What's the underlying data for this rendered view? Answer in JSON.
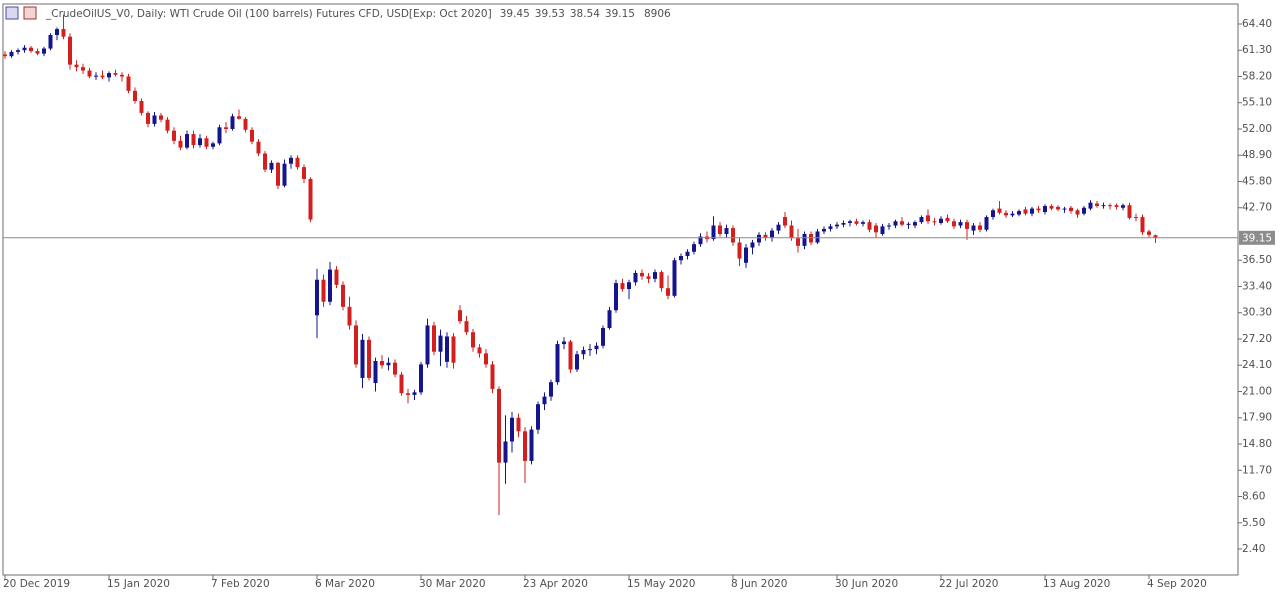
{
  "chart_data": {
    "type": "candlestick",
    "title": "_CrudeOilUS_V0, Daily:  WTI Crude Oil (100 barrels) Futures CFD, USD[Exp: Oct 2020]",
    "volume": 8906,
    "up_color": "#14148c",
    "down_color": "#d41f1f",
    "price_line_color": "#8c8c8c",
    "ylim": [
      -0.67,
      66.76
    ],
    "yticks": [
      {
        "value": 64.4,
        "label": "64.40"
      },
      {
        "value": 61.3,
        "label": "61.30"
      },
      {
        "value": 58.2,
        "label": "58.20"
      },
      {
        "value": 55.1,
        "label": "55.10"
      },
      {
        "value": 52,
        "label": "52.00"
      },
      {
        "value": 48.9,
        "label": "48.90"
      },
      {
        "value": 45.8,
        "label": "45.80"
      },
      {
        "value": 42.7,
        "label": "42.70"
      },
      {
        "value": 36.5,
        "label": "36.50"
      },
      {
        "value": 33.4,
        "label": "33.40"
      },
      {
        "value": 30.3,
        "label": "30.30"
      },
      {
        "value": 27.2,
        "label": "27.20"
      },
      {
        "value": 24.1,
        "label": "24.10"
      },
      {
        "value": 21,
        "label": "21.00"
      },
      {
        "value": 17.9,
        "label": "17.90"
      },
      {
        "value": 14.8,
        "label": "14.80"
      },
      {
        "value": 11.7,
        "label": "11.70"
      },
      {
        "value": 8.6,
        "label": "8.60"
      },
      {
        "value": 5.5,
        "label": "5.50"
      },
      {
        "value": 2.4,
        "label": "2.40"
      }
    ],
    "categories": [
      "20 Dec 2019",
      null,
      null,
      null,
      null,
      null,
      null,
      null,
      null,
      null,
      null,
      null,
      null,
      null,
      null,
      null,
      "15 Jan 2020",
      null,
      null,
      null,
      null,
      null,
      null,
      null,
      null,
      null,
      null,
      null,
      null,
      null,
      null,
      null,
      "7 Feb 2020",
      null,
      null,
      null,
      null,
      null,
      null,
      null,
      null,
      null,
      null,
      null,
      null,
      null,
      null,
      null,
      "6 Mar 2020",
      null,
      null,
      null,
      null,
      null,
      null,
      null,
      null,
      null,
      null,
      null,
      null,
      null,
      null,
      null,
      "30 Mar 2020",
      null,
      null,
      null,
      null,
      null,
      null,
      null,
      null,
      null,
      null,
      null,
      null,
      null,
      null,
      null,
      "23 Apr 2020",
      null,
      null,
      null,
      null,
      null,
      null,
      null,
      null,
      null,
      null,
      null,
      null,
      null,
      null,
      null,
      "15 May 2020",
      null,
      null,
      null,
      null,
      null,
      null,
      null,
      null,
      null,
      null,
      null,
      null,
      null,
      null,
      null,
      "8 Jun 2020",
      null,
      null,
      null,
      null,
      null,
      null,
      null,
      null,
      null,
      null,
      null,
      null,
      null,
      null,
      null,
      "30 Jun 2020",
      null,
      null,
      null,
      null,
      null,
      null,
      null,
      null,
      null,
      null,
      null,
      null,
      null,
      null,
      null,
      "22 Jul 2020",
      null,
      null,
      null,
      null,
      null,
      null,
      null,
      null,
      null,
      null,
      null,
      null,
      null,
      null,
      null,
      "13 Aug 2020",
      null,
      null,
      null,
      null,
      null,
      null,
      null,
      null,
      null,
      null,
      null,
      null,
      null,
      null,
      null,
      "4 Sep 2020",
      null
    ],
    "ohlc": [
      [
        60.8,
        61.2,
        60.3,
        60.6
      ],
      [
        60.6,
        61.3,
        60.4,
        61.1
      ],
      [
        61.1,
        61.5,
        60.8,
        61.3
      ],
      [
        61.3,
        61.9,
        61.0,
        61.6
      ],
      [
        61.6,
        61.8,
        61.0,
        61.2
      ],
      [
        61.2,
        61.5,
        60.7,
        60.9
      ],
      [
        60.9,
        61.7,
        60.6,
        61.5
      ],
      [
        61.5,
        63.3,
        61.3,
        63.1
      ],
      [
        63.1,
        64.0,
        62.5,
        63.8
      ],
      [
        63.8,
        65.5,
        62.6,
        62.9
      ],
      [
        62.9,
        63.3,
        59.0,
        59.6
      ],
      [
        59.6,
        60.1,
        58.8,
        59.3
      ],
      [
        59.3,
        59.7,
        58.5,
        58.9
      ],
      [
        58.9,
        59.2,
        58.0,
        58.2
      ],
      [
        58.2,
        58.7,
        57.8,
        58.3
      ],
      [
        58.3,
        58.9,
        57.9,
        58.1
      ],
      [
        58.1,
        58.8,
        57.6,
        58.6
      ],
      [
        58.6,
        59.0,
        58.2,
        58.4
      ],
      [
        58.4,
        58.7,
        57.6,
        58.2
      ],
      [
        58.2,
        58.5,
        56.2,
        56.5
      ],
      [
        56.5,
        56.9,
        55.0,
        55.3
      ],
      [
        55.3,
        55.6,
        53.6,
        53.9
      ],
      [
        53.9,
        54.1,
        52.2,
        52.6
      ],
      [
        52.6,
        54.0,
        52.3,
        53.6
      ],
      [
        53.6,
        53.9,
        52.8,
        53.1
      ],
      [
        53.1,
        53.4,
        51.5,
        51.8
      ],
      [
        51.8,
        52.2,
        50.2,
        50.6
      ],
      [
        50.6,
        51.2,
        49.5,
        49.8
      ],
      [
        49.8,
        51.8,
        49.6,
        51.4
      ],
      [
        51.4,
        51.8,
        49.7,
        50.1
      ],
      [
        50.1,
        51.4,
        49.8,
        50.9
      ],
      [
        50.9,
        51.2,
        49.6,
        49.9
      ],
      [
        49.9,
        50.5,
        49.6,
        50.3
      ],
      [
        50.3,
        52.5,
        50.1,
        52.2
      ],
      [
        52.2,
        52.8,
        51.5,
        52.0
      ],
      [
        52.0,
        53.8,
        51.8,
        53.5
      ],
      [
        53.5,
        54.3,
        53.1,
        53.2
      ],
      [
        53.2,
        53.4,
        51.6,
        51.9
      ],
      [
        51.9,
        52.2,
        50.2,
        50.5
      ],
      [
        50.5,
        50.8,
        48.8,
        49.1
      ],
      [
        49.1,
        49.4,
        46.9,
        47.2
      ],
      [
        47.2,
        48.3,
        46.8,
        48.0
      ],
      [
        48.0,
        48.1,
        44.9,
        45.3
      ],
      [
        45.3,
        48.4,
        45.1,
        47.9
      ],
      [
        47.9,
        48.9,
        47.3,
        48.6
      ],
      [
        48.6,
        48.9,
        47.2,
        47.5
      ],
      [
        47.5,
        47.8,
        45.6,
        46.1
      ],
      [
        46.1,
        46.3,
        41.0,
        41.3
      ],
      [
        30.0,
        35.5,
        27.3,
        34.2
      ],
      [
        34.2,
        34.8,
        31.0,
        31.6
      ],
      [
        31.6,
        36.3,
        31.2,
        35.4
      ],
      [
        35.4,
        35.8,
        33.2,
        33.6
      ],
      [
        33.6,
        34.0,
        30.6,
        31.0
      ],
      [
        31.0,
        32.2,
        28.3,
        28.8
      ],
      [
        28.8,
        29.4,
        23.8,
        24.2
      ],
      [
        22.6,
        27.8,
        21.4,
        27.1
      ],
      [
        27.1,
        27.5,
        22.3,
        22.6
      ],
      [
        22.0,
        25.0,
        21.0,
        24.6
      ],
      [
        24.6,
        25.3,
        23.7,
        24.1
      ],
      [
        24.1,
        25.0,
        23.5,
        24.4
      ],
      [
        24.4,
        24.8,
        22.7,
        23.0
      ],
      [
        23.0,
        23.3,
        20.5,
        20.8
      ],
      [
        20.8,
        21.3,
        19.6,
        20.6
      ],
      [
        20.6,
        21.2,
        20.0,
        20.9
      ],
      [
        20.9,
        24.5,
        20.6,
        24.2
      ],
      [
        24.2,
        29.6,
        23.8,
        28.8
      ],
      [
        28.8,
        29.2,
        25.3,
        25.7
      ],
      [
        25.7,
        28.3,
        24.0,
        27.6
      ],
      [
        24.5,
        28.0,
        23.8,
        27.5
      ],
      [
        27.5,
        27.9,
        23.7,
        24.4
      ],
      [
        30.6,
        31.2,
        29.0,
        29.3
      ],
      [
        29.3,
        29.9,
        27.7,
        28.0
      ],
      [
        28.0,
        28.4,
        25.7,
        26.2
      ],
      [
        26.2,
        26.6,
        25.0,
        25.5
      ],
      [
        25.5,
        26.0,
        23.8,
        24.2
      ],
      [
        24.2,
        24.6,
        20.8,
        21.3
      ],
      [
        21.3,
        21.6,
        6.4,
        12.6
      ],
      [
        12.6,
        18.2,
        10.1,
        15.1
      ],
      [
        15.1,
        18.6,
        13.8,
        17.9
      ],
      [
        17.9,
        18.4,
        15.6,
        16.3
      ],
      [
        16.3,
        16.8,
        10.2,
        12.8
      ],
      [
        12.8,
        16.9,
        12.4,
        16.5
      ],
      [
        16.5,
        19.8,
        16.0,
        19.5
      ],
      [
        19.5,
        20.9,
        18.8,
        20.4
      ],
      [
        20.4,
        22.4,
        19.9,
        22.1
      ],
      [
        22.1,
        27.0,
        21.8,
        26.6
      ],
      [
        26.6,
        27.4,
        26.0,
        26.9
      ],
      [
        26.9,
        27.1,
        23.2,
        23.6
      ],
      [
        23.6,
        25.8,
        23.3,
        25.4
      ],
      [
        25.4,
        26.3,
        24.8,
        25.9
      ],
      [
        25.9,
        26.6,
        25.2,
        26.0
      ],
      [
        26.0,
        26.8,
        25.4,
        26.4
      ],
      [
        26.4,
        28.8,
        26.1,
        28.5
      ],
      [
        28.5,
        31.0,
        28.3,
        30.6
      ],
      [
        30.6,
        34.2,
        30.3,
        33.8
      ],
      [
        33.8,
        34.3,
        32.8,
        33.1
      ],
      [
        33.1,
        34.2,
        31.9,
        33.9
      ],
      [
        33.9,
        35.3,
        33.5,
        35.0
      ],
      [
        35.0,
        35.4,
        34.2,
        34.6
      ],
      [
        34.6,
        35.0,
        33.8,
        34.3
      ],
      [
        34.3,
        35.4,
        33.9,
        35.1
      ],
      [
        35.1,
        35.3,
        32.8,
        33.2
      ],
      [
        33.2,
        34.7,
        31.9,
        32.3
      ],
      [
        32.3,
        36.8,
        32.1,
        36.5
      ],
      [
        36.5,
        37.3,
        36.0,
        37.0
      ],
      [
        37.0,
        37.8,
        36.6,
        37.5
      ],
      [
        37.5,
        38.7,
        37.2,
        38.4
      ],
      [
        38.4,
        39.7,
        38.1,
        39.3
      ],
      [
        39.3,
        39.9,
        38.6,
        39.0
      ],
      [
        39.0,
        41.7,
        38.8,
        40.6
      ],
      [
        40.6,
        41.0,
        39.3,
        39.6
      ],
      [
        39.6,
        40.7,
        39.2,
        40.3
      ],
      [
        40.3,
        40.6,
        38.2,
        38.6
      ],
      [
        38.6,
        39.2,
        35.8,
        36.7
      ],
      [
        36.2,
        38.4,
        35.6,
        38.0
      ],
      [
        38.0,
        38.9,
        37.2,
        38.6
      ],
      [
        38.6,
        39.8,
        38.2,
        39.5
      ],
      [
        39.5,
        39.8,
        38.8,
        39.2
      ],
      [
        39.2,
        40.3,
        38.7,
        40.0
      ],
      [
        40.0,
        41.0,
        39.6,
        40.7
      ],
      [
        41.6,
        42.2,
        40.3,
        40.6
      ],
      [
        40.6,
        41.2,
        38.8,
        39.1
      ],
      [
        39.1,
        40.2,
        37.4,
        38.2
      ],
      [
        38.2,
        39.9,
        37.8,
        39.6
      ],
      [
        39.6,
        39.9,
        38.3,
        38.6
      ],
      [
        38.6,
        40.2,
        38.4,
        39.9
      ],
      [
        39.9,
        40.5,
        39.6,
        40.2
      ],
      [
        40.2,
        40.8,
        39.9,
        40.5
      ],
      [
        40.5,
        41.0,
        40.2,
        40.7
      ],
      [
        40.7,
        41.2,
        40.4,
        40.9
      ],
      [
        40.9,
        41.3,
        40.5,
        41.1
      ],
      [
        41.1,
        41.4,
        40.6,
        40.8
      ],
      [
        40.8,
        41.2,
        40.5,
        41.0
      ],
      [
        41.0,
        41.3,
        39.8,
        40.1
      ],
      [
        40.6,
        40.9,
        39.1,
        39.8
      ],
      [
        39.6,
        40.8,
        39.4,
        40.5
      ],
      [
        40.5,
        40.9,
        40.1,
        40.6
      ],
      [
        40.6,
        41.3,
        40.3,
        41.1
      ],
      [
        41.1,
        41.6,
        40.5,
        40.7
      ],
      [
        40.7,
        41.0,
        40.2,
        40.8
      ],
      [
        40.6,
        41.2,
        40.3,
        41.0
      ],
      [
        41.0,
        41.8,
        40.8,
        41.6
      ],
      [
        41.8,
        42.5,
        40.8,
        41.1
      ],
      [
        41.1,
        41.5,
        40.6,
        41.0
      ],
      [
        40.9,
        41.7,
        40.7,
        41.4
      ],
      [
        41.5,
        41.9,
        40.9,
        41.1
      ],
      [
        41.1,
        41.4,
        40.2,
        40.5
      ],
      [
        40.6,
        41.3,
        40.3,
        41.0
      ],
      [
        41.0,
        41.3,
        38.9,
        40.2
      ],
      [
        40.0,
        40.9,
        39.5,
        40.6
      ],
      [
        40.6,
        41.0,
        39.8,
        40.1
      ],
      [
        40.1,
        41.8,
        39.9,
        41.6
      ],
      [
        41.6,
        42.6,
        41.3,
        42.4
      ],
      [
        42.6,
        43.5,
        41.9,
        42.1
      ],
      [
        42.1,
        42.4,
        41.5,
        41.8
      ],
      [
        41.8,
        42.3,
        41.6,
        42.0
      ],
      [
        41.9,
        42.5,
        41.7,
        42.3
      ],
      [
        42.5,
        42.8,
        41.8,
        42.0
      ],
      [
        42.0,
        42.8,
        41.7,
        42.6
      ],
      [
        42.6,
        42.9,
        42.1,
        42.4
      ],
      [
        42.2,
        43.1,
        41.9,
        42.9
      ],
      [
        42.9,
        43.1,
        42.4,
        42.6
      ],
      [
        42.8,
        43.0,
        42.3,
        42.5
      ],
      [
        42.5,
        42.8,
        42.1,
        42.6
      ],
      [
        42.7,
        42.9,
        42.0,
        42.3
      ],
      [
        42.4,
        42.6,
        41.5,
        41.9
      ],
      [
        42.0,
        42.9,
        41.8,
        42.7
      ],
      [
        42.6,
        43.6,
        42.4,
        43.3
      ],
      [
        43.2,
        43.5,
        42.7,
        42.9
      ],
      [
        42.9,
        43.3,
        42.6,
        43.0
      ],
      [
        43.0,
        43.2,
        42.5,
        42.9
      ],
      [
        43.0,
        43.2,
        42.5,
        42.8
      ],
      [
        42.7,
        43.2,
        42.4,
        43.0
      ],
      [
        43.0,
        43.3,
        41.3,
        41.5
      ],
      [
        41.6,
        42.0,
        41.1,
        41.5
      ],
      [
        41.6,
        41.9,
        39.5,
        39.8
      ],
      [
        39.9,
        40.1,
        39.2,
        39.5
      ],
      [
        39.45,
        39.53,
        38.54,
        39.15
      ]
    ]
  }
}
